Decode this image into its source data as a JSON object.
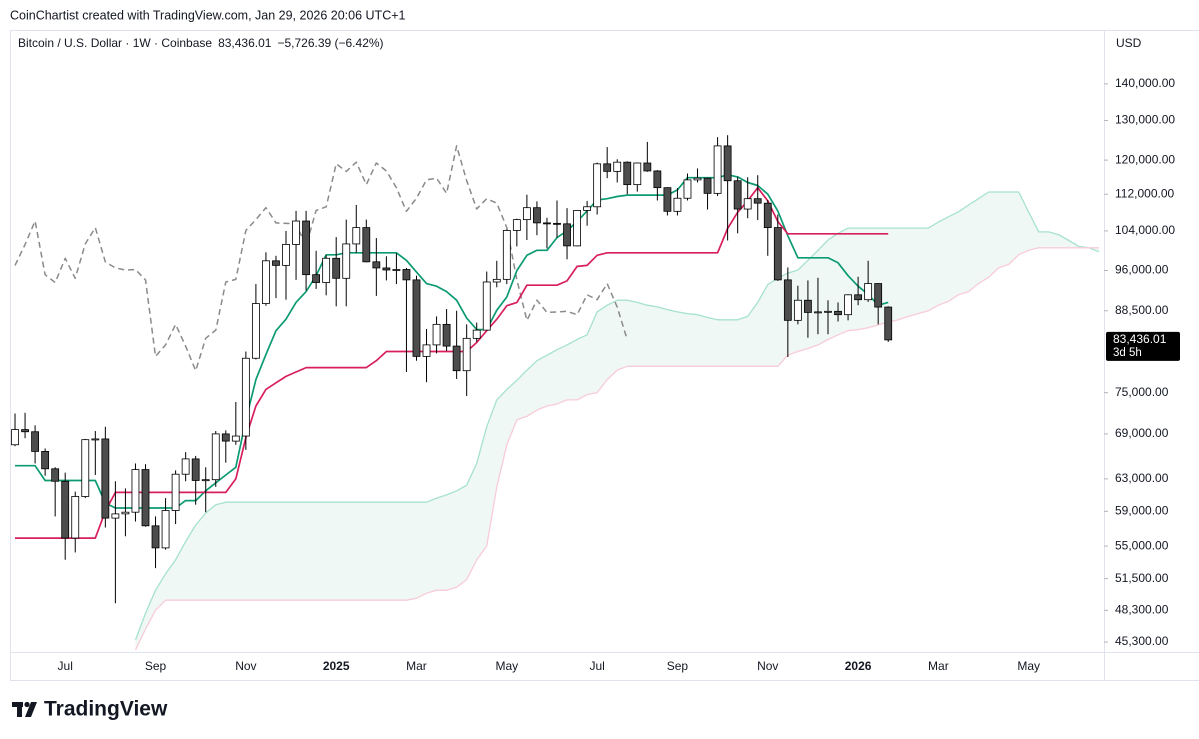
{
  "attribution": "CoinChartist created with TradingView.com, Jan 29, 2026 20:06 UTC+1",
  "logo": "TradingView",
  "chart_data": {
    "type": "candlestick",
    "title": "Bitcoin / U.S. Dollar · 1W · Coinbase",
    "last_label": "83,436.01",
    "change_label": "−5,726.39 (−6.42%)",
    "countdown": "3d 5h",
    "y_unit": "USD",
    "ylog": true,
    "grid": false,
    "ylim": [
      44400,
      156100
    ],
    "yticks": [
      {
        "value": 45300,
        "label": "45,300.00"
      },
      {
        "value": 48300,
        "label": "48,300.00"
      },
      {
        "value": 51500,
        "label": "51,500.00"
      },
      {
        "value": 55000,
        "label": "55,000.00"
      },
      {
        "value": 59000,
        "label": "59,000.00"
      },
      {
        "value": 63000,
        "label": "63,000.00"
      },
      {
        "value": 69000,
        "label": "69,000.00"
      },
      {
        "value": 75000,
        "label": "75,000.00"
      },
      {
        "value": 88500,
        "label": "88,500.00"
      },
      {
        "value": 96000,
        "label": "96,000.00"
      },
      {
        "value": 104000,
        "label": "104,000.00"
      },
      {
        "value": 112000,
        "label": "112,000.00"
      },
      {
        "value": 120000,
        "label": "120,000.00"
      },
      {
        "value": 130000,
        "label": "130,000.00"
      },
      {
        "value": 140000,
        "label": "140,000.00"
      }
    ],
    "categories": [
      null,
      null,
      null,
      null,
      null,
      "Jul",
      null,
      null,
      null,
      null,
      null,
      null,
      null,
      null,
      "Sep",
      null,
      null,
      null,
      null,
      null,
      null,
      null,
      null,
      "Nov",
      null,
      null,
      null,
      null,
      null,
      null,
      null,
      null,
      "2025",
      null,
      null,
      null,
      null,
      null,
      null,
      null,
      "Mar",
      null,
      null,
      null,
      null,
      null,
      null,
      null,
      null,
      "May",
      null,
      null,
      null,
      null,
      null,
      null,
      null,
      null,
      "Jul",
      null,
      null,
      null,
      null,
      null,
      null,
      null,
      "Sep",
      null,
      null,
      null,
      null,
      null,
      null,
      null,
      null,
      "Nov",
      null,
      null,
      null,
      null,
      null,
      null,
      null,
      null,
      "2026",
      null,
      null,
      null,
      null,
      null,
      null,
      null,
      "Mar",
      null,
      null,
      null,
      null,
      null,
      null,
      null,
      null,
      "May",
      null,
      null,
      null,
      null,
      null,
      null,
      null
    ],
    "candles": {
      "up_color": "#ffffff",
      "down_color": "#4d4d4d",
      "border_color": "#000000",
      "open": [
        67500,
        69600,
        69300,
        66600,
        64300,
        62700,
        55900,
        60800,
        68200,
        68300,
        58200,
        58700,
        58900,
        64200,
        57300,
        54800,
        59100,
        63600,
        65600,
        62800,
        62900,
        69000,
        68000,
        68700,
        80400,
        89800,
        97900,
        97000,
        101200,
        106100,
        95200,
        93700,
        98400,
        94500,
        101300,
        104700,
        97700,
        96500,
        96100,
        96200,
        94200,
        80700,
        82600,
        86100,
        82400,
        78400,
        83700,
        85100,
        93800,
        94300,
        104100,
        106400,
        109000,
        105700,
        105600,
        105500,
        100900,
        108400,
        109200,
        119100,
        117300,
        119500,
        114200,
        119300,
        117400,
        113500,
        108200,
        111100,
        115300,
        115700,
        112200,
        123500,
        115100,
        108700,
        111000,
        110000,
        104700,
        94200,
        86800,
        90400,
        88200,
        88300,
        88400,
        87800,
        91400,
        90500,
        93500,
        89162.4,
        null,
        null,
        null,
        null,
        null,
        null,
        null,
        null,
        null,
        null,
        null,
        null,
        null,
        null,
        null,
        null,
        null,
        null,
        null,
        null,
        null
      ],
      "high": [
        71900,
        72000,
        70200,
        67000,
        64500,
        63800,
        61400,
        68300,
        69400,
        70000,
        62700,
        61800,
        65000,
        64900,
        58400,
        60600,
        64100,
        66500,
        66000,
        64500,
        69400,
        69500,
        73600,
        81500,
        93400,
        99600,
        98900,
        104000,
        108300,
        108300,
        99900,
        99000,
        102700,
        106400,
        109600,
        106400,
        102500,
        98800,
        99400,
        96500,
        95000,
        85300,
        87500,
        88800,
        88500,
        86100,
        86400,
        95800,
        97900,
        104300,
        106600,
        111900,
        110400,
        106800,
        110600,
        108900,
        108500,
        110500,
        119400,
        123200,
        120200,
        119700,
        119400,
        124500,
        117600,
        113600,
        113400,
        116800,
        118000,
        115800,
        125700,
        126200,
        116000,
        115900,
        116400,
        110700,
        107500,
        96600,
        93100,
        94100,
        94600,
        90400,
        90000,
        91500,
        94800,
        97900,
        93600,
        89300,
        null,
        null,
        null,
        null,
        null,
        null,
        null,
        null,
        null,
        null,
        null,
        null,
        null,
        null,
        null,
        null,
        null,
        null,
        null,
        null,
        null
      ],
      "low": [
        67300,
        68400,
        65000,
        63400,
        58400,
        53500,
        54300,
        60600,
        63500,
        57100,
        49000,
        56100,
        57800,
        57200,
        52600,
        54600,
        57500,
        62700,
        59800,
        58900,
        62000,
        65100,
        67500,
        66800,
        80200,
        89400,
        90800,
        90500,
        94200,
        92200,
        92500,
        91300,
        89300,
        89300,
        99500,
        97600,
        91200,
        94100,
        93400,
        78200,
        80000,
        76600,
        81200,
        81600,
        77100,
        74500,
        83100,
        85100,
        92800,
        93400,
        100800,
        102100,
        103100,
        100400,
        102600,
        98200,
        100800,
        105100,
        107500,
        115700,
        114700,
        112000,
        112600,
        117200,
        110600,
        107300,
        107300,
        110600,
        114700,
        108600,
        111600,
        102000,
        103500,
        106700,
        106300,
        98900,
        94000,
        80600,
        86100,
        83800,
        84400,
        84400,
        86600,
        86800,
        89500,
        90100,
        86100,
        83100,
        null,
        null,
        null,
        null,
        null,
        null,
        null,
        null,
        null,
        null,
        null,
        null,
        null,
        null,
        null,
        null,
        null,
        null,
        null,
        null,
        null
      ],
      "close": [
        69600,
        69300,
        66600,
        64300,
        62700,
        55900,
        60800,
        68200,
        68300,
        58200,
        58700,
        58900,
        64200,
        57300,
        54800,
        59100,
        63600,
        65600,
        62800,
        62900,
        69000,
        68000,
        68700,
        80400,
        89800,
        97900,
        97000,
        101200,
        106100,
        95200,
        93700,
        98400,
        94500,
        101300,
        104700,
        97700,
        96500,
        96100,
        96200,
        94200,
        80700,
        82600,
        86100,
        82400,
        78400,
        83700,
        85100,
        93800,
        94300,
        104100,
        106400,
        109000,
        105700,
        105600,
        105500,
        100900,
        108400,
        109200,
        119100,
        117300,
        119500,
        114200,
        119300,
        117400,
        113500,
        108200,
        111100,
        115300,
        115700,
        112200,
        123500,
        115100,
        108700,
        111000,
        110000,
        104700,
        94200,
        86800,
        90400,
        88200,
        88300,
        88400,
        87800,
        91400,
        90500,
        93500,
        89162.4,
        83436.01,
        null,
        null,
        null,
        null,
        null,
        null,
        null,
        null,
        null,
        null,
        null,
        null,
        null,
        null,
        null,
        null,
        null,
        null,
        null,
        null,
        null
      ]
    },
    "cloud": {
      "fill": "#e8f5f0",
      "span_a": {
        "color": "#a6e2cd",
        "values": [
          null,
          null,
          null,
          null,
          null,
          null,
          null,
          null,
          null,
          null,
          null,
          null,
          45500,
          48000,
          50300,
          52000,
          53500,
          55500,
          57400,
          58800,
          59800,
          60100,
          60100,
          60100,
          60100,
          60100,
          60100,
          60100,
          60100,
          60100,
          60100,
          60100,
          60100,
          60100,
          60100,
          60100,
          60100,
          60100,
          60100,
          60100,
          60100,
          60100,
          60600,
          61000,
          61500,
          62200,
          65000,
          70000,
          73900,
          75500,
          76900,
          78500,
          80000,
          80900,
          81800,
          82600,
          83500,
          84300,
          88300,
          89500,
          90400,
          90400,
          90000,
          89500,
          89200,
          88700,
          88300,
          88000,
          87800,
          87300,
          86900,
          86900,
          86900,
          87500,
          90000,
          93300,
          94500,
          95500,
          96100,
          98000,
          100000,
          102100,
          103500,
          104600,
          104600,
          104600,
          104600,
          104600,
          104600,
          104600,
          104600,
          104600,
          105900,
          107000,
          108100,
          109600,
          111000,
          112500,
          112500,
          112500,
          112500,
          108000,
          103800,
          103800,
          103200,
          102000,
          100800,
          100500,
          99700
        ]
      },
      "span_b": {
        "color": "#f8ccd7",
        "values": [
          null,
          null,
          null,
          null,
          null,
          null,
          null,
          null,
          null,
          null,
          null,
          null,
          44600,
          46500,
          48300,
          49300,
          49300,
          49300,
          49300,
          49300,
          49300,
          49300,
          49300,
          49300,
          49300,
          49300,
          49300,
          49300,
          49300,
          49300,
          49300,
          49300,
          49300,
          49300,
          49300,
          49300,
          49300,
          49300,
          49300,
          49300,
          49500,
          50000,
          50300,
          50300,
          50600,
          51400,
          53500,
          55000,
          62000,
          67500,
          71000,
          71500,
          72400,
          73000,
          73300,
          73900,
          73900,
          74700,
          75000,
          77000,
          78500,
          79100,
          79100,
          79100,
          79100,
          79100,
          79100,
          79100,
          79100,
          79100,
          79100,
          79100,
          79100,
          79100,
          79100,
          79100,
          79100,
          80900,
          81500,
          82000,
          82600,
          83500,
          84300,
          85000,
          85200,
          85500,
          86000,
          86500,
          86900,
          87500,
          88000,
          88500,
          89500,
          90200,
          91400,
          92000,
          93500,
          94700,
          96500,
          97200,
          99100,
          100000,
          100500,
          100500,
          100500,
          100500,
          100500,
          100500,
          100500
        ]
      }
    },
    "lines": [
      {
        "color": "#8a8a8a",
        "dashed": true,
        "values": [
          97000,
          101200,
          106100,
          95200,
          93700,
          98400,
          94500,
          101300,
          104700,
          97700,
          96500,
          96100,
          96200,
          94200,
          80700,
          82600,
          86100,
          82400,
          78400,
          83700,
          85100,
          93800,
          94300,
          104100,
          106400,
          109000,
          105700,
          105600,
          105500,
          100900,
          108400,
          109200,
          119100,
          117300,
          119500,
          114200,
          119300,
          117400,
          113500,
          108200,
          111100,
          115300,
          115700,
          112200,
          123500,
          115100,
          108700,
          111000,
          110000,
          104700,
          94200,
          86800,
          90400,
          88200,
          88300,
          88400,
          87800,
          91400,
          90500,
          93500,
          89162.4,
          83436.01,
          null,
          null,
          null,
          null,
          null,
          null,
          null,
          null,
          null,
          null,
          null,
          null,
          null,
          null,
          null,
          null,
          null,
          null,
          null,
          null,
          null,
          null,
          null,
          null,
          null,
          null,
          null,
          null,
          null,
          null,
          null,
          null,
          null,
          null,
          null,
          null,
          null,
          null,
          null,
          null,
          null,
          null,
          null,
          null,
          null
        ]
      },
      {
        "color": "#0b9a72",
        "dashed": false,
        "values": [
          64700,
          64700,
          64700,
          62800,
          62800,
          62800,
          62800,
          62800,
          62800,
          60000,
          59400,
          59400,
          59400,
          59400,
          59400,
          59400,
          59400,
          60300,
          60300,
          61500,
          62500,
          63500,
          64500,
          71000,
          77000,
          81000,
          85000,
          87000,
          90000,
          92000,
          95000,
          99100,
          99100,
          99500,
          99500,
          99500,
          99500,
          99500,
          99500,
          98000,
          95700,
          93500,
          93000,
          92000,
          90400,
          87200,
          85200,
          85200,
          88600,
          91000,
          96000,
          99000,
          100000,
          100000,
          102600,
          104000,
          106000,
          108300,
          110700,
          111000,
          111500,
          111800,
          111800,
          111800,
          111800,
          111800,
          113000,
          115800,
          115800,
          115800,
          115800,
          116500,
          116000,
          114700,
          114000,
          112000,
          108300,
          103000,
          98500,
          98500,
          98500,
          98500,
          97500,
          95000,
          93000,
          91500,
          89500,
          90000,
          null,
          null,
          null,
          null,
          null,
          null,
          null,
          null,
          null,
          null,
          null,
          null,
          null,
          null,
          null,
          null,
          null,
          null,
          null,
          null,
          null
        ]
      },
      {
        "color": "#d81f5c",
        "dashed": false,
        "values": [
          55900,
          55900,
          55900,
          55900,
          55900,
          55900,
          55900,
          55900,
          55900,
          59000,
          61300,
          61300,
          61300,
          61300,
          61300,
          61300,
          61300,
          61300,
          61300,
          61300,
          61300,
          61300,
          63000,
          68500,
          73000,
          75500,
          76500,
          77500,
          78200,
          78900,
          78900,
          78900,
          78900,
          78900,
          78900,
          78900,
          80000,
          81500,
          81500,
          81500,
          81500,
          81500,
          81500,
          81500,
          81500,
          81500,
          83000,
          85000,
          87000,
          89400,
          90000,
          93200,
          93200,
          93200,
          93200,
          94000,
          96800,
          97000,
          99000,
          99500,
          99500,
          99500,
          99500,
          99500,
          99500,
          99500,
          99500,
          99500,
          99500,
          99500,
          99500,
          104500,
          108000,
          110500,
          113500,
          110500,
          106000,
          103400,
          103400,
          103400,
          103400,
          103400,
          103400,
          103400,
          103400,
          103400,
          103400,
          103400,
          null,
          null,
          null,
          null,
          null,
          null,
          null,
          null,
          null,
          null,
          null,
          null,
          null,
          null,
          null,
          null,
          null,
          null,
          null,
          null,
          null
        ]
      }
    ]
  }
}
